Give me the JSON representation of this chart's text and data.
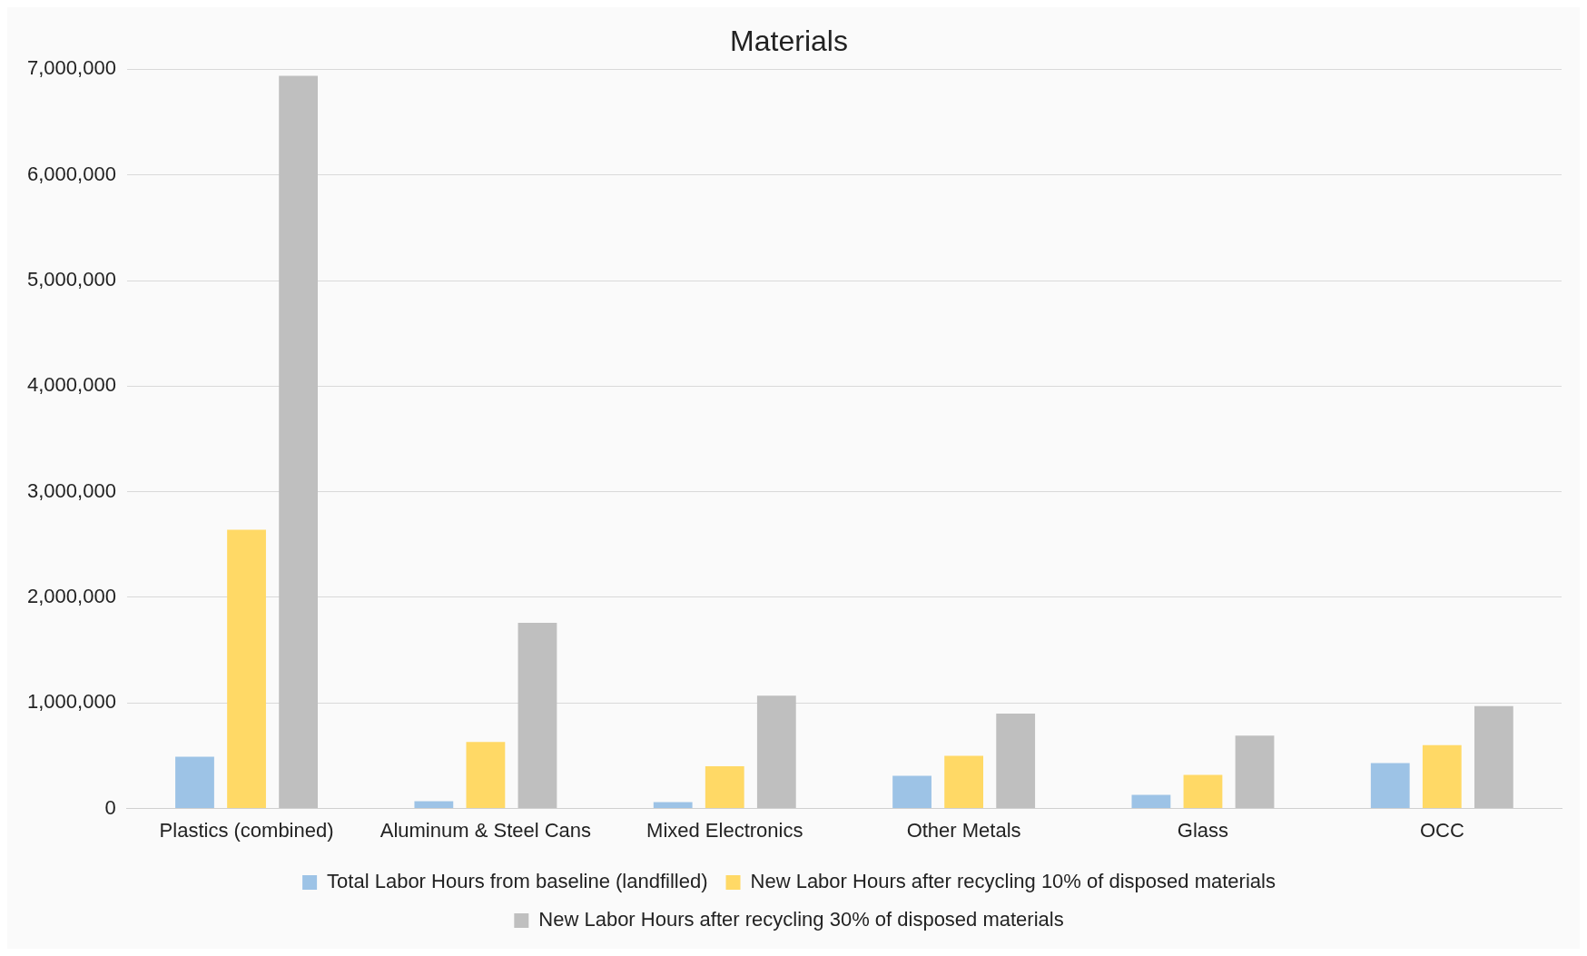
{
  "chart_data": {
    "type": "bar",
    "title": "Materials",
    "categories": [
      "Plastics (combined)",
      "Aluminum & Steel Cans",
      "Mixed Electronics",
      "Other Metals",
      "Glass",
      "OCC"
    ],
    "series": [
      {
        "name": "Total Labor Hours from baseline (landfilled)",
        "color": "#9dc3e6",
        "values": [
          490000,
          70000,
          60000,
          310000,
          130000,
          430000
        ]
      },
      {
        "name": "New Labor Hours after recycling 10% of disposed materials",
        "color": "#ffd966",
        "values": [
          2640000,
          630000,
          400000,
          500000,
          320000,
          600000
        ]
      },
      {
        "name": "New Labor Hours after recycling 30% of disposed materials",
        "color": "#bfbfbf",
        "values": [
          6940000,
          1760000,
          1070000,
          900000,
          690000,
          970000
        ]
      }
    ],
    "ylim": [
      0,
      7000000
    ],
    "yticks": [
      0,
      {
        "value": 1000000,
        "label": "1,000,000"
      },
      {
        "value": 2000000,
        "label": "2,000,000"
      },
      {
        "value": 3000000,
        "label": "3,000,000"
      },
      {
        "value": 4000000,
        "label": "4,000,000"
      },
      {
        "value": 5000000,
        "label": "5,000,000"
      },
      {
        "value": 6000000,
        "label": "6,000,000"
      },
      {
        "value": 7000000,
        "label": "7,000,000"
      }
    ],
    "grid": "y",
    "legend": "bottom"
  }
}
